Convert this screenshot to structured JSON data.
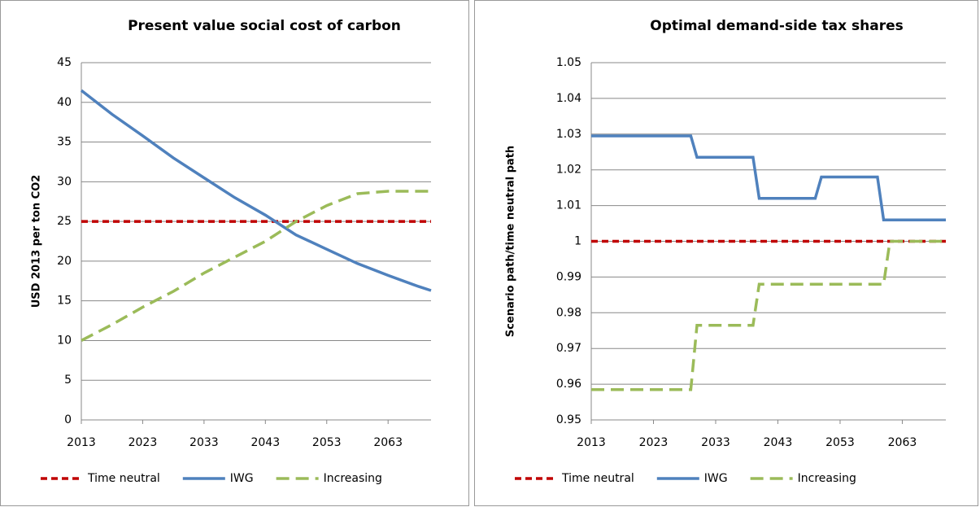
{
  "chart_data": [
    {
      "type": "line",
      "title": "Present value social cost of carbon",
      "y_label": "USD 2013 per ton CO2",
      "x": [
        2013,
        2018,
        2023,
        2028,
        2033,
        2038,
        2043,
        2048,
        2053,
        2058,
        2063,
        2068,
        2070
      ],
      "series": [
        {
          "name": "Time neutral",
          "color": "#c00000",
          "line_style": "dashed",
          "values": [
            25,
            25,
            25,
            25,
            25,
            25,
            25,
            25,
            25,
            25,
            25,
            25,
            25
          ]
        },
        {
          "name": "IWG",
          "color": "#4f81bd",
          "line_style": "solid",
          "values": [
            41.5,
            38.5,
            35.8,
            33,
            30.5,
            28,
            25.8,
            23.3,
            21.5,
            19.7,
            18.2,
            16.8,
            16.3
          ]
        },
        {
          "name": "Increasing",
          "color": "#9bbb59",
          "line_style": "long-dash",
          "values": [
            10,
            12,
            14.2,
            16.2,
            18.5,
            20.5,
            22.5,
            25,
            27,
            28.5,
            28.8,
            28.8,
            28.8
          ]
        }
      ],
      "xlim": [
        2013,
        2070
      ],
      "xticks": [
        2013,
        2023,
        2033,
        2043,
        2053,
        2063
      ],
      "ylim": [
        0,
        45
      ],
      "yticks": [
        0,
        5,
        10,
        15,
        20,
        25,
        30,
        35,
        40,
        45
      ],
      "grid": true,
      "legend": "bottom"
    },
    {
      "type": "line",
      "title": "Optimal demand-side tax shares",
      "y_label": "Scenario path/time neutral path",
      "x": [
        2013,
        2029,
        2030,
        2039,
        2040,
        2049,
        2050,
        2059,
        2060,
        2061,
        2070
      ],
      "series": [
        {
          "name": "Time neutral",
          "color": "#c00000",
          "line_style": "dashed",
          "values": [
            1,
            1,
            1,
            1,
            1,
            1,
            1,
            1,
            1,
            1,
            1
          ]
        },
        {
          "name": "IWG",
          "color": "#4f81bd",
          "line_style": "solid",
          "values": [
            1.0295,
            1.0295,
            1.0235,
            1.0235,
            1.012,
            1.012,
            1.018,
            1.018,
            1.006,
            1.006,
            1.006
          ]
        },
        {
          "name": "Increasing",
          "color": "#9bbb59",
          "line_style": "long-dash",
          "values": [
            0.9585,
            0.9585,
            0.9765,
            0.9765,
            0.988,
            0.988,
            0.988,
            0.988,
            0.988,
            1,
            1
          ]
        }
      ],
      "xlim": [
        2013,
        2070
      ],
      "xticks": [
        2013,
        2023,
        2033,
        2043,
        2053,
        2063
      ],
      "ylim": [
        0.95,
        1.05
      ],
      "yticks": [
        0.95,
        0.96,
        0.97,
        0.98,
        0.99,
        1,
        1.01,
        1.02,
        1.03,
        1.04,
        1.05
      ],
      "grid": true,
      "legend": "bottom"
    }
  ]
}
